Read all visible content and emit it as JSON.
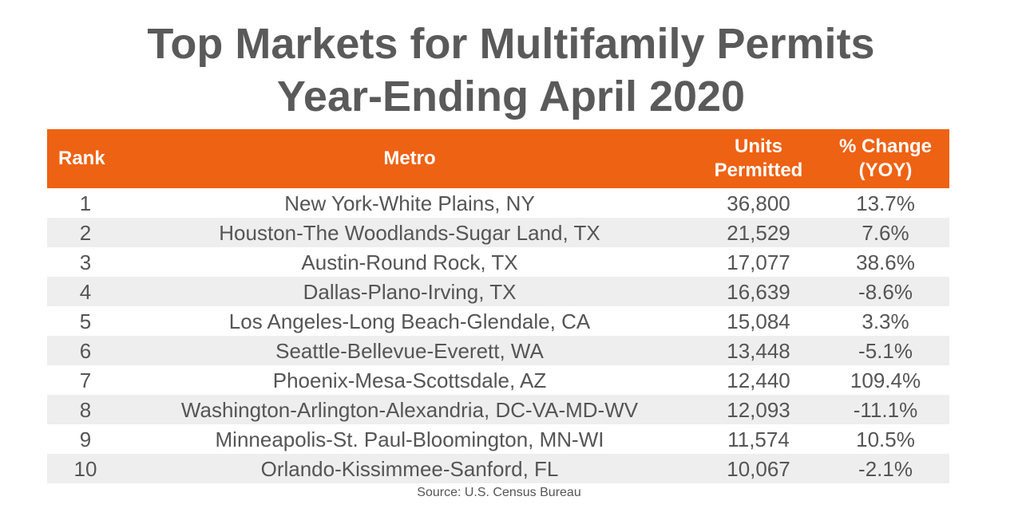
{
  "title_line1": "Top Markets for Multifamily Permits",
  "title_line2": "Year-Ending April 2020",
  "source": "Source: U.S. Census Bureau",
  "colors": {
    "header_bg": "#ee6214",
    "header_text": "#ffffff",
    "stripe": "#eeeeee",
    "text": "#555555"
  },
  "chart_data": {
    "type": "table",
    "columns": [
      "Rank",
      "Metro",
      "Units Permitted",
      "% Change (YOY)"
    ],
    "header_lines": {
      "units": [
        "Units",
        "Permitted"
      ],
      "change": [
        "% Change",
        "(YOY)"
      ]
    },
    "rows": [
      {
        "rank": "1",
        "metro": "New York-White Plains, NY",
        "units": "36,800",
        "change": "13.7%"
      },
      {
        "rank": "2",
        "metro": "Houston-The Woodlands-Sugar Land, TX",
        "units": "21,529",
        "change": "7.6%"
      },
      {
        "rank": "3",
        "metro": "Austin-Round Rock, TX",
        "units": "17,077",
        "change": "38.6%"
      },
      {
        "rank": "4",
        "metro": "Dallas-Plano-Irving, TX",
        "units": "16,639",
        "change": "-8.6%"
      },
      {
        "rank": "5",
        "metro": "Los Angeles-Long Beach-Glendale, CA",
        "units": "15,084",
        "change": "3.3%"
      },
      {
        "rank": "6",
        "metro": "Seattle-Bellevue-Everett, WA",
        "units": "13,448",
        "change": "-5.1%"
      },
      {
        "rank": "7",
        "metro": "Phoenix-Mesa-Scottsdale, AZ",
        "units": "12,440",
        "change": "109.4%"
      },
      {
        "rank": "8",
        "metro": "Washington-Arlington-Alexandria, DC-VA-MD-WV",
        "units": "12,093",
        "change": "-11.1%"
      },
      {
        "rank": "9",
        "metro": "Minneapolis-St. Paul-Bloomington, MN-WI",
        "units": "11,574",
        "change": "10.5%"
      },
      {
        "rank": "10",
        "metro": "Orlando-Kissimmee-Sanford, FL",
        "units": "10,067",
        "change": "-2.1%"
      }
    ]
  }
}
